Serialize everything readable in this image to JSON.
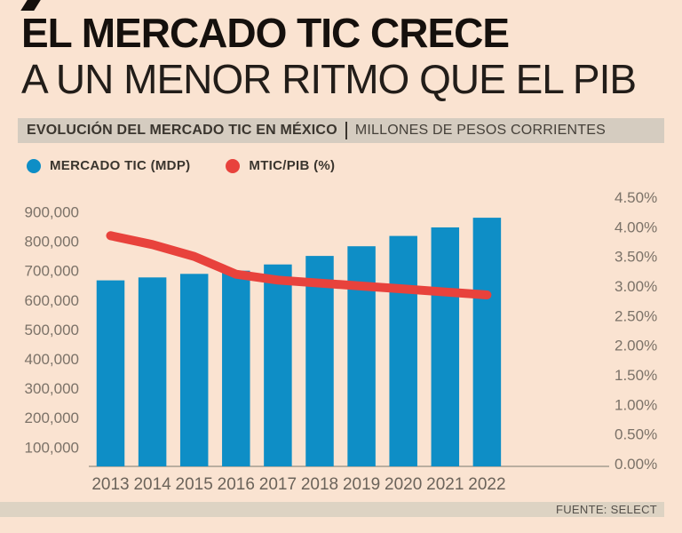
{
  "header": {
    "title_line1": "EL MERCADO TIC CRECE",
    "title_line2": "A UN MENOR RITMO QUE EL PIB"
  },
  "subtitle_bar": {
    "primary": "EVOLUCIÓN DEL MERCADO TIC EN MÉXICO",
    "separator": "|",
    "secondary": "MILLONES DE PESOS CORRIENTES"
  },
  "legend": [
    {
      "label": "MERCADO TIC (MDP)",
      "color": "#0e8ec6"
    },
    {
      "label": "MTIC/PIB (%)",
      "color": "#e8423c"
    }
  ],
  "chart_data": {
    "type": "bar",
    "title": "EL MERCADO TIC CRECE A UN MENOR RITMO QUE EL PIB",
    "subtitle": "EVOLUCIÓN DEL MERCADO TIC EN MÉXICO | MILLONES DE PESOS CORRIENTES",
    "categories": [
      "2013",
      "2014",
      "2015",
      "2016",
      "2017",
      "2018",
      "2019",
      "2020",
      "2021",
      "2022"
    ],
    "series": [
      {
        "name": "MERCADO TIC (MDP)",
        "type": "bar",
        "axis": "left",
        "color": "#0e8ec6",
        "values": [
          667000,
          677000,
          689000,
          700000,
          721000,
          750000,
          783000,
          818000,
          847000,
          880000
        ]
      },
      {
        "name": "MTIC/PIB (%)",
        "type": "line",
        "axis": "right",
        "color": "#e8423c",
        "values": [
          3.85,
          3.7,
          3.5,
          3.2,
          3.1,
          3.05,
          3.0,
          2.95,
          2.9,
          2.85
        ]
      }
    ],
    "left_axis": {
      "ticks": [
        "900,000",
        "800,000",
        "700,000",
        "600,000",
        "500,000",
        "400,000",
        "300,000",
        "200,000",
        "100,000"
      ],
      "min": 0,
      "max": 900000
    },
    "right_axis": {
      "ticks": [
        "4.50%",
        "4.00%",
        "3.50%",
        "3.00%",
        "2.50%",
        "2.00%",
        "1.50%",
        "1.00%",
        "0.50%",
        "0.00%"
      ],
      "min": 0,
      "max": 4.5
    },
    "grid": false,
    "legend_position": "top-left"
  },
  "footer": {
    "source": "FUENTE: SELECT"
  },
  "colors": {
    "background": "#fae3d1",
    "subtitle_band": "#d5ccc0",
    "footer_band": "#ddd3c3",
    "axis_line": "#a59c8f"
  }
}
